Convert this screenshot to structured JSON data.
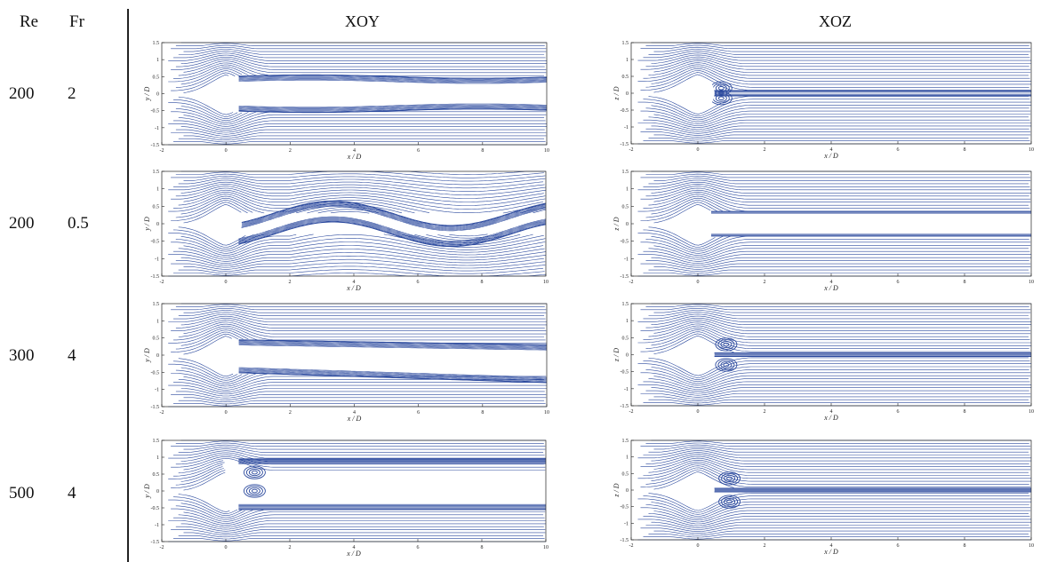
{
  "header": {
    "re_label": "Re",
    "fr_label": "Fr",
    "col_xoy": "XOY",
    "col_xoz": "XOZ"
  },
  "rows": [
    {
      "re": "200",
      "fr": "2"
    },
    {
      "re": "200",
      "fr": "0.5"
    },
    {
      "re": "300",
      "fr": "4"
    },
    {
      "re": "500",
      "fr": "4"
    }
  ],
  "colors": {
    "streamline": "#2c4a9e",
    "axis": "#222222"
  },
  "chart_data": [
    {
      "type": "streamline",
      "panel": "XOY",
      "re": "200",
      "fr": "2",
      "xlabel": "x / D",
      "ylabel": "y / D",
      "xlim": [
        -2,
        10
      ],
      "ylim": [
        -1.5,
        1.5
      ],
      "xticks": [
        "-2",
        "0",
        "2",
        "4",
        "6",
        "8",
        "10"
      ],
      "yticks": [
        "1.5",
        "1",
        "0.5",
        "0",
        "-0.5",
        "-1",
        "-1.5"
      ]
    },
    {
      "type": "streamline",
      "panel": "XOZ",
      "re": "200",
      "fr": "2",
      "xlabel": "x / D",
      "ylabel": "z / D",
      "xlim": [
        -2,
        10
      ],
      "ylim": [
        -1.5,
        1.5
      ],
      "xticks": [
        "-2",
        "0",
        "2",
        "4",
        "6",
        "8",
        "10"
      ],
      "yticks": [
        "1.5",
        "1",
        "0.5",
        "0",
        "-0.5",
        "-1",
        "-1.5"
      ]
    },
    {
      "type": "streamline",
      "panel": "XOY",
      "re": "200",
      "fr": "0.5",
      "xlabel": "x / D",
      "ylabel": "y / D",
      "xlim": [
        -2,
        10
      ],
      "ylim": [
        -1.5,
        1.5
      ],
      "xticks": [
        "-2",
        "0",
        "2",
        "4",
        "6",
        "8",
        "10"
      ],
      "yticks": [
        "1.5",
        "1",
        "0.5",
        "0",
        "-0.5",
        "-1",
        "-1.5"
      ]
    },
    {
      "type": "streamline",
      "panel": "XOZ",
      "re": "200",
      "fr": "0.5",
      "xlabel": "x / D",
      "ylabel": "z / D",
      "xlim": [
        -2,
        10
      ],
      "ylim": [
        -1.5,
        1.5
      ],
      "xticks": [
        "-2",
        "0",
        "2",
        "4",
        "6",
        "8",
        "10"
      ],
      "yticks": [
        "1.5",
        "1",
        "0.5",
        "0",
        "-0.5",
        "-1",
        "-1.5"
      ]
    },
    {
      "type": "streamline",
      "panel": "XOY",
      "re": "300",
      "fr": "4",
      "xlabel": "x / D",
      "ylabel": "y / D",
      "xlim": [
        -2,
        10
      ],
      "ylim": [
        -1.5,
        1.5
      ],
      "xticks": [
        "-2",
        "0",
        "2",
        "4",
        "6",
        "8",
        "10"
      ],
      "yticks": [
        "1.5",
        "1",
        "0.5",
        "0",
        "-0.5",
        "-1",
        "-1.5"
      ]
    },
    {
      "type": "streamline",
      "panel": "XOZ",
      "re": "300",
      "fr": "4",
      "xlabel": "x / D",
      "ylabel": "z / D",
      "xlim": [
        -2,
        10
      ],
      "ylim": [
        -1.5,
        1.5
      ],
      "xticks": [
        "-2",
        "0",
        "2",
        "4",
        "6",
        "8",
        "10"
      ],
      "yticks": [
        "1.5",
        "1",
        "0.5",
        "0",
        "-0.5",
        "-1",
        "-1.5"
      ]
    },
    {
      "type": "streamline",
      "panel": "XOY",
      "re": "500",
      "fr": "4",
      "xlabel": "x / D",
      "ylabel": "y / D",
      "xlim": [
        -2,
        10
      ],
      "ylim": [
        -1.5,
        1.5
      ],
      "xticks": [
        "-2",
        "0",
        "2",
        "4",
        "6",
        "8",
        "10"
      ],
      "yticks": [
        "1.5",
        "1",
        "0.5",
        "0",
        "-0.5",
        "-1",
        "-1.5"
      ]
    },
    {
      "type": "streamline",
      "panel": "XOZ",
      "re": "500",
      "fr": "4",
      "xlabel": "x / D",
      "ylabel": "z / D",
      "xlim": [
        -2,
        10
      ],
      "ylim": [
        -1.5,
        1.5
      ],
      "xticks": [
        "-2",
        "0",
        "2",
        "4",
        "6",
        "8",
        "10"
      ],
      "yticks": [
        "1.5",
        "1",
        "0.5",
        "0",
        "-0.5",
        "-1",
        "-1.5"
      ]
    }
  ]
}
